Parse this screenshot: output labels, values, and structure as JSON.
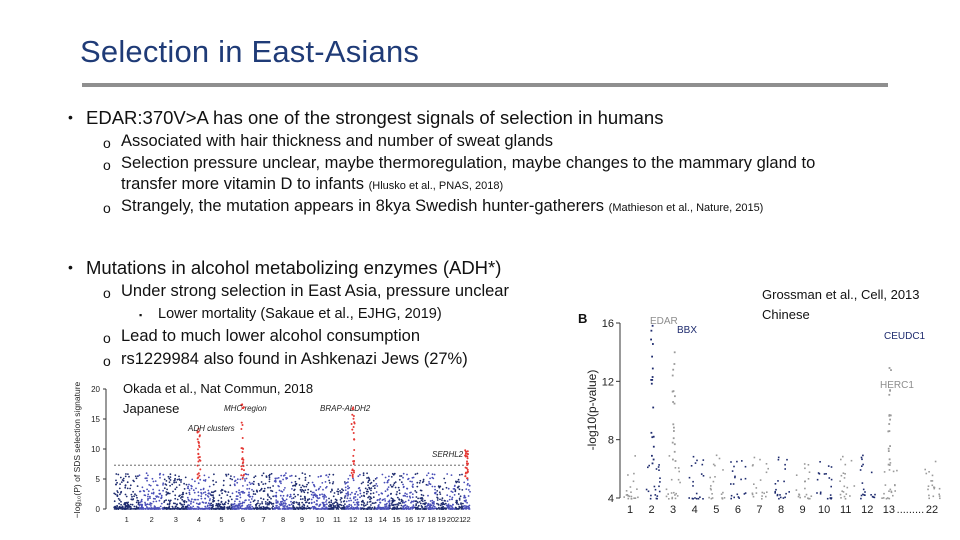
{
  "slide": {
    "title": "Selection in East-Asians",
    "bullet1": {
      "text": "EDAR:370V>A has one of the strongest signals of selection in humans",
      "subs": [
        "Associated with hair thickness and number of sweat glands",
        "Selection pressure unclear, maybe thermoregulation, maybe changes to the mammary gland to",
        "transfer more vitamin D to infants",
        "Strangely, the mutation appears in 8kya Swedish hunter-gatherers"
      ],
      "cite_hlusko": "(Hlusko et al., PNAS, 2018)",
      "cite_mathieson": "(Mathieson et al., Nature, 2015)"
    },
    "bullet2": {
      "text": "Mutations in alcohol metabolizing enzymes (ADH*)",
      "sub1": "Under strong selection in East Asia, pressure unclear",
      "subsub1": "Lower mortality (Sakaue et al., EJHG, 2019)",
      "sub2": "Lead to much lower alcohol consumption",
      "sub3": "rs1229984 also found in Ashkenazi Jews (27%)"
    },
    "okada_citation": [
      "Okada et al., Nat Commun, 2018",
      "Japanese"
    ],
    "grossman_citation": [
      "Grossman et al., Cell, 2013",
      "Chinese"
    ]
  },
  "colors": {
    "title": "#1f3b77",
    "rule": "#8f8f8f",
    "navy": "#1e2b6e",
    "grey": "#9a9a9a",
    "red": "#e53935",
    "threshold": "#555555"
  },
  "chart_data": [
    {
      "type": "scatter",
      "description_free": true,
      "ylabel": "−log₁₀(P) of SDS selection signature",
      "yticks": [
        "0",
        "5",
        "10",
        "15",
        "20"
      ],
      "ylim": [
        0,
        20
      ],
      "threshold": 7.3,
      "x_tick_labels": [
        "1",
        "2",
        "3",
        "4",
        "5",
        "6",
        "7",
        "8",
        "9",
        "10",
        "11",
        "12",
        "13",
        "14",
        "15",
        "16",
        "17",
        "18",
        "19",
        "20",
        "21",
        "22"
      ],
      "annotations": [
        "MHC region",
        "BRAP-ALDH2",
        "ADH clusters",
        "SERHL2"
      ],
      "peaks": [
        {
          "chr": "4",
          "label": "ADH clusters",
          "value": 13.5
        },
        {
          "chr": "6",
          "label": "MHC region",
          "value": 17.5
        },
        {
          "chr": "12",
          "label": "BRAP-ALDH2",
          "value": 17.0
        },
        {
          "chr": "22",
          "label": "SERHL2",
          "value": 10.0
        }
      ]
    },
    {
      "type": "scatter",
      "panel_label": "B",
      "ylabel": "-log10(p-value)",
      "yticks": [
        "4",
        "8",
        "12",
        "16"
      ],
      "ylim": [
        4,
        16
      ],
      "x_tick_labels": [
        "1",
        "2",
        "3",
        "4",
        "5",
        "6",
        "7",
        "8",
        "9",
        "10",
        "11",
        "12",
        "13",
        ".........",
        "22"
      ],
      "annotations": [
        "EDAR",
        "BBX",
        "CEUDC1",
        "HERC1"
      ],
      "peaks": [
        {
          "chr": "2",
          "label": "EDAR",
          "value": 16.5
        },
        {
          "chr": "3",
          "label": "BBX",
          "value": 14.5
        },
        {
          "chr": "13",
          "label": "CEUDC1",
          "value": 13.0
        },
        {
          "chr": "15",
          "label": "HERC1",
          "value": 10.5
        }
      ]
    }
  ]
}
